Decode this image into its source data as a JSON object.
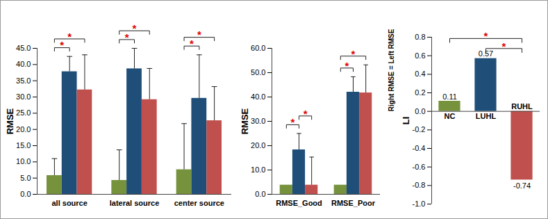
{
  "chart_data": [
    {
      "type": "bar",
      "y_label": "RMSE",
      "categories": [
        "all source",
        "lateral source",
        "center source"
      ],
      "series": [
        {
          "color": "#76923c",
          "values": [
            5.8,
            4.3,
            7.6
          ],
          "errors": [
            5.2,
            9.4,
            14.2
          ]
        },
        {
          "color": "#1f4e79",
          "values": [
            37.8,
            38.7,
            29.6
          ],
          "errors": [
            4.7,
            6.3,
            13.4
          ]
        },
        {
          "color": "#c0504d",
          "values": [
            32.2,
            29.2,
            22.7
          ],
          "errors": [
            10.8,
            9.6,
            10.5
          ]
        }
      ],
      "ylim": [
        0,
        45
      ],
      "yticks": [
        {
          "value": 0,
          "label": "0.0"
        },
        {
          "value": 5,
          "label": "5.0"
        },
        {
          "value": 10,
          "label": "10.0"
        },
        {
          "value": 15,
          "label": "15.0"
        },
        {
          "value": 20,
          "label": "20.0"
        },
        {
          "value": 25,
          "label": "25.0"
        },
        {
          "value": 30,
          "label": "30.0"
        },
        {
          "value": 35,
          "label": "35.0"
        },
        {
          "value": 40,
          "label": "40.0"
        },
        {
          "value": 45,
          "label": "45.0"
        }
      ],
      "significance": [
        {
          "category": "all source",
          "between": [
            0,
            1
          ],
          "text": "*"
        },
        {
          "category": "all source",
          "between": [
            0,
            2
          ],
          "text": "*"
        },
        {
          "category": "lateral source",
          "between": [
            0,
            1
          ],
          "text": "*"
        },
        {
          "category": "lateral source",
          "between": [
            0,
            2
          ],
          "text": "*"
        },
        {
          "category": "center source",
          "between": [
            0,
            1
          ],
          "text": "*"
        },
        {
          "category": "center source",
          "between": [
            0,
            2
          ],
          "text": "*"
        }
      ]
    },
    {
      "type": "bar",
      "y_label": "RMSE",
      "categories": [
        "RMSE_Good",
        "RMSE_Poor"
      ],
      "series": [
        {
          "color": "#76923c",
          "values": [
            3.8,
            3.8
          ],
          "errors": [
            null,
            null
          ]
        },
        {
          "color": "#1f4e79",
          "values": [
            18.3,
            42.0
          ],
          "errors": [
            6.7,
            6.3
          ]
        },
        {
          "color": "#c0504d",
          "values": [
            3.8,
            41.7
          ],
          "errors": [
            11.5,
            11.5
          ]
        }
      ],
      "ylim": [
        0,
        60
      ],
      "yticks": [
        {
          "value": 0,
          "label": "0.0"
        },
        {
          "value": 10,
          "label": "10.0"
        },
        {
          "value": 20,
          "label": "20.0"
        },
        {
          "value": 30,
          "label": "30.0"
        },
        {
          "value": 40,
          "label": "40.0"
        },
        {
          "value": 50,
          "label": "50.0"
        },
        {
          "value": 60,
          "label": "60.0"
        }
      ],
      "significance": [
        {
          "category": "RMSE_Good",
          "between": [
            0,
            1
          ],
          "text": "*"
        },
        {
          "category": "RMSE_Good",
          "between": [
            1,
            2
          ],
          "text": "*"
        },
        {
          "category": "RMSE_Poor",
          "between": [
            0,
            1
          ],
          "text": "*"
        },
        {
          "category": "RMSE_Poor",
          "between": [
            0,
            2
          ],
          "text": "*"
        }
      ]
    },
    {
      "type": "bar",
      "y_label": "LI",
      "annotations": [
        {
          "text": "Right RMSE = Left RMSE",
          "y": 0
        }
      ],
      "categories": [
        "NC",
        "LUHL",
        "RUHL"
      ],
      "values": [
        0.11,
        0.57,
        -0.74
      ],
      "colors": [
        "#76923c",
        "#1f4e79",
        "#c0504d"
      ],
      "data_labels": true,
      "ylim": [
        -1,
        0.8
      ],
      "yticks": [
        0.8,
        0.6,
        0.4,
        0.2,
        {
          "value": 0,
          "label": "0.0"
        },
        -0.2,
        -0.4,
        -0.6,
        -0.8,
        {
          "value": -1,
          "label": "-1.0"
        }
      ],
      "significance": [
        {
          "between": [
            1,
            2
          ],
          "text": "*"
        },
        {
          "between": [
            0,
            2
          ],
          "text": "*"
        }
      ]
    }
  ]
}
